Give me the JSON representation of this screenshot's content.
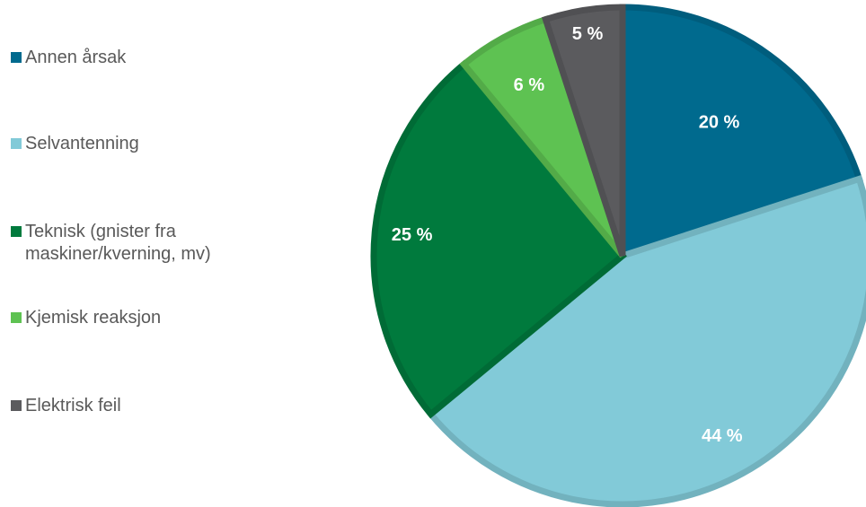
{
  "chart_data": {
    "type": "pie",
    "title": "",
    "legend_position": "left",
    "slices": [
      {
        "label": "Annen årsak",
        "value": 20,
        "value_label": "20 %",
        "color": "#006a8e"
      },
      {
        "label": "Selvantenning",
        "value": 44,
        "value_label": "44 %",
        "color": "#82cad8"
      },
      {
        "label": "Teknisk (gnister fra maskiner/kverning, mv)",
        "value": 25,
        "value_label": "25 %",
        "color": "#007a3d"
      },
      {
        "label": "Kjemisk reaksjon",
        "value": 6,
        "value_label": "6 %",
        "color": "#5ec252"
      },
      {
        "label": "Elektrisk feil",
        "value": 5,
        "value_label": "5 %",
        "color": "#5b5b5e"
      }
    ]
  }
}
